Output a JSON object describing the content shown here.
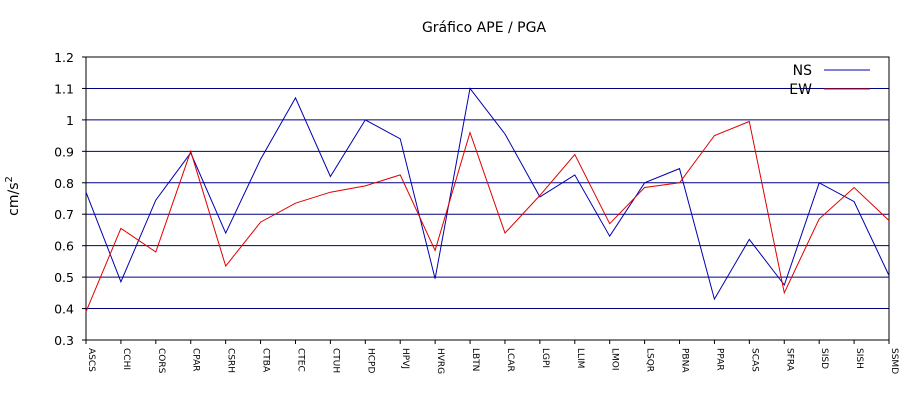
{
  "chart_data": {
    "type": "line",
    "title": "Gráfico  APE / PGA",
    "ylabel": "cm/s",
    "ylabel_superscript": "2",
    "ylim": [
      0.3,
      1.2
    ],
    "yticks": [
      "0.3",
      "0.4",
      "0.5",
      "0.6",
      "0.7",
      "0.8",
      "0.9",
      "1",
      "1.1",
      "1.2"
    ],
    "grid": "horizontal",
    "legend_position": "top-right",
    "categories": [
      "ASCS",
      "CCHI",
      "CORS",
      "CPAR",
      "CSRH",
      "CTBA",
      "CTEC",
      "CTUH",
      "HCPD",
      "HPVJ",
      "HVRG",
      "LBTN",
      "LCAR",
      "LGPI",
      "LLIM",
      "LMOI",
      "LSQR",
      "PBNA",
      "PPAR",
      "SCAS",
      "SFRA",
      "SISD",
      "SISH",
      "SSMD"
    ],
    "series": [
      {
        "name": "NS",
        "color": "#0000b0",
        "values": [
          0.77,
          0.485,
          0.745,
          0.895,
          0.64,
          0.875,
          1.07,
          0.82,
          1.0,
          0.94,
          0.495,
          1.1,
          0.955,
          0.755,
          0.825,
          0.63,
          0.8,
          0.845,
          0.43,
          0.62,
          0.475,
          0.8,
          0.74,
          0.505
        ]
      },
      {
        "name": "EW",
        "color": "#e00000",
        "values": [
          0.39,
          0.655,
          0.58,
          0.9,
          0.535,
          0.675,
          0.735,
          0.77,
          0.79,
          0.825,
          0.585,
          0.96,
          0.64,
          0.76,
          0.89,
          0.67,
          0.785,
          0.8,
          0.95,
          0.995,
          0.45,
          0.685,
          0.785,
          0.68
        ]
      }
    ]
  }
}
